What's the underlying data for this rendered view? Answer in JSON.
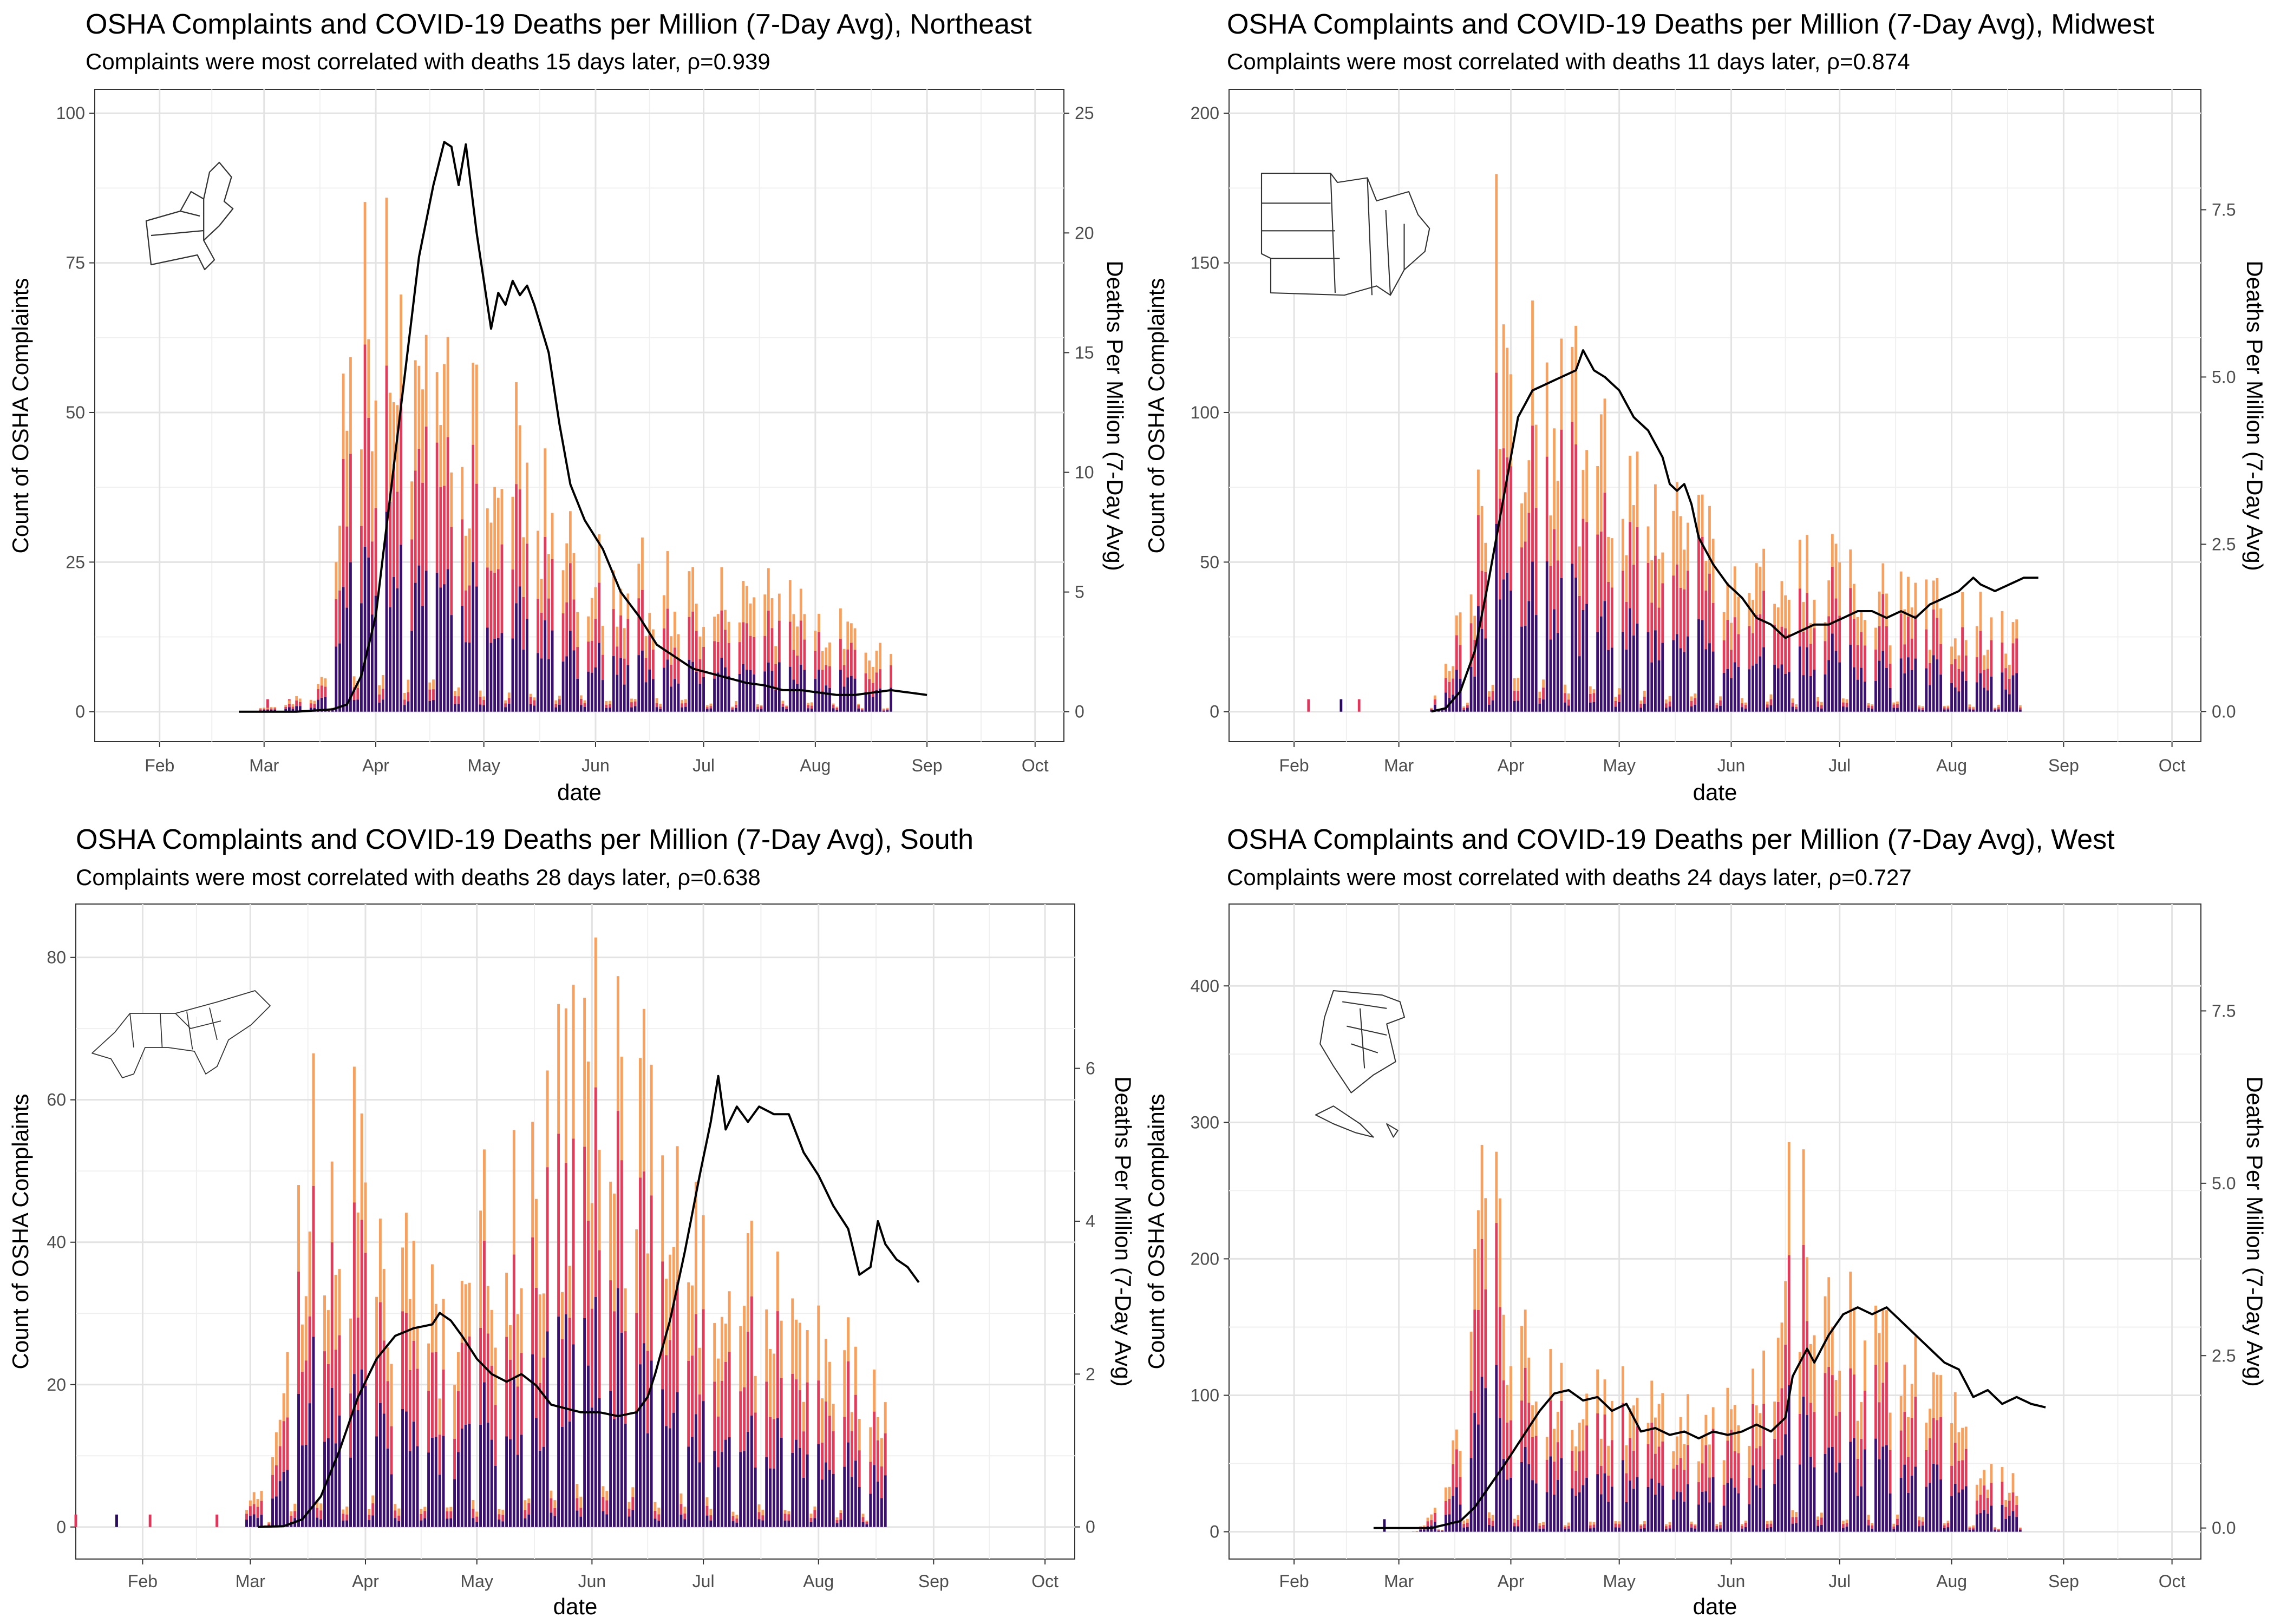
{
  "chart_data": [
    {
      "type": "bar",
      "region": "Northeast",
      "title": "OSHA Complaints and COVID-19 Deaths per Million (7-Day Avg), Northeast",
      "subtitle": "Complaints were most correlated with deaths 15 days later, ρ=0.939",
      "xlabel": "date",
      "ylabel": "Count of OSHA Complaints",
      "y2label": "Deaths Per Million (7-Day Avg)",
      "x_ticks": [
        "Feb",
        "Mar",
        "Apr",
        "May",
        "Jun",
        "Jul",
        "Aug",
        "Sep",
        "Oct"
      ],
      "y_ticks": [
        "0",
        "25",
        "50",
        "75",
        "100"
      ],
      "y2_ticks": [
        "0",
        "5",
        "10",
        "15",
        "20",
        "25"
      ],
      "ylim": [
        -5,
        104
      ],
      "y2lim": [
        -1.25,
        26
      ],
      "grid": true,
      "bars_first_day": 58,
      "bars_last_day": 235,
      "bar_complaint_anchors": [
        [
          58,
          0
        ],
        [
          62,
          1
        ],
        [
          70,
          2
        ],
        [
          75,
          3
        ],
        [
          80,
          8
        ],
        [
          83,
          45
        ],
        [
          87,
          62
        ],
        [
          92,
          72
        ],
        [
          95,
          68
        ],
        [
          100,
          55
        ],
        [
          105,
          65
        ],
        [
          110,
          52
        ],
        [
          115,
          48
        ],
        [
          120,
          45
        ],
        [
          125,
          40
        ],
        [
          130,
          44
        ],
        [
          135,
          38
        ],
        [
          140,
          35
        ],
        [
          145,
          30
        ],
        [
          150,
          28
        ],
        [
          160,
          24
        ],
        [
          170,
          22
        ],
        [
          180,
          22
        ],
        [
          190,
          18
        ],
        [
          200,
          20
        ],
        [
          210,
          16
        ],
        [
          220,
          14
        ],
        [
          230,
          12
        ],
        [
          235,
          10
        ]
      ],
      "spike_days": [
        62,
        68,
        76
      ],
      "death_line": [
        [
          54,
          0
        ],
        [
          60,
          0
        ],
        [
          70,
          0
        ],
        [
          80,
          0.1
        ],
        [
          84,
          0.3
        ],
        [
          88,
          1.5
        ],
        [
          92,
          4
        ],
        [
          96,
          9
        ],
        [
          100,
          14
        ],
        [
          104,
          19
        ],
        [
          108,
          22
        ],
        [
          111,
          23.8
        ],
        [
          113,
          23.6
        ],
        [
          115,
          22
        ],
        [
          117,
          23.7
        ],
        [
          120,
          20
        ],
        [
          124,
          16
        ],
        [
          126,
          17.5
        ],
        [
          128,
          17
        ],
        [
          130,
          18
        ],
        [
          132,
          17.4
        ],
        [
          134,
          17.8
        ],
        [
          136,
          17
        ],
        [
          140,
          15
        ],
        [
          143,
          12
        ],
        [
          146,
          9.5
        ],
        [
          150,
          8
        ],
        [
          155,
          6.8
        ],
        [
          160,
          5
        ],
        [
          165,
          4
        ],
        [
          170,
          2.8
        ],
        [
          175,
          2.3
        ],
        [
          180,
          1.8
        ],
        [
          185,
          1.6
        ],
        [
          190,
          1.4
        ],
        [
          195,
          1.2
        ],
        [
          200,
          1.1
        ],
        [
          205,
          0.9
        ],
        [
          210,
          0.9
        ],
        [
          215,
          0.8
        ],
        [
          220,
          0.7
        ],
        [
          225,
          0.7
        ],
        [
          230,
          0.8
        ],
        [
          235,
          0.9
        ],
        [
          240,
          0.8
        ],
        [
          245,
          0.7
        ]
      ],
      "map": "northeast"
    },
    {
      "type": "bar",
      "region": "Midwest",
      "title": "OSHA Complaints and COVID-19 Deaths per Million (7-Day Avg), Midwest",
      "subtitle": "Complaints were most correlated with deaths 11 days later, ρ=0.874",
      "xlabel": "date",
      "ylabel": "Count of OSHA Complaints",
      "y2label": "Deaths Per Million (7-Day Avg)",
      "x_ticks": [
        "Feb",
        "Mar",
        "Apr",
        "May",
        "Jun",
        "Jul",
        "Aug",
        "Sep",
        "Oct"
      ],
      "y_ticks": [
        "0",
        "50",
        "100",
        "150",
        "200"
      ],
      "y2_ticks": [
        "0.0",
        "2.5",
        "5.0",
        "7.5"
      ],
      "ylim": [
        -10,
        208
      ],
      "y2lim": [
        -0.45,
        9.3
      ],
      "grid": true,
      "bars_first_day": 70,
      "bars_last_day": 233,
      "bar_complaint_anchors": [
        [
          70,
          2
        ],
        [
          75,
          20
        ],
        [
          80,
          40
        ],
        [
          85,
          80
        ],
        [
          88,
          150
        ],
        [
          92,
          170
        ],
        [
          95,
          125
        ],
        [
          100,
          110
        ],
        [
          105,
          105
        ],
        [
          110,
          100
        ],
        [
          115,
          95
        ],
        [
          120,
          90
        ],
        [
          125,
          80
        ],
        [
          130,
          75
        ],
        [
          135,
          70
        ],
        [
          140,
          65
        ],
        [
          145,
          60
        ],
        [
          150,
          55
        ],
        [
          155,
          50
        ],
        [
          160,
          60
        ],
        [
          165,
          55
        ],
        [
          170,
          52
        ],
        [
          175,
          48
        ],
        [
          180,
          50
        ],
        [
          190,
          40
        ],
        [
          200,
          38
        ],
        [
          210,
          35
        ],
        [
          220,
          32
        ],
        [
          233,
          25
        ]
      ],
      "spike_days": [
        36,
        45,
        50
      ],
      "death_line": [
        [
          70,
          0
        ],
        [
          74,
          0.05
        ],
        [
          78,
          0.3
        ],
        [
          82,
          0.9
        ],
        [
          86,
          2
        ],
        [
          90,
          3.2
        ],
        [
          94,
          4.4
        ],
        [
          98,
          4.8
        ],
        [
          102,
          4.9
        ],
        [
          106,
          5
        ],
        [
          110,
          5.1
        ],
        [
          112,
          5.4
        ],
        [
          115,
          5.1
        ],
        [
          118,
          5
        ],
        [
          122,
          4.8
        ],
        [
          126,
          4.4
        ],
        [
          130,
          4.2
        ],
        [
          134,
          3.8
        ],
        [
          136,
          3.4
        ],
        [
          138,
          3.3
        ],
        [
          140,
          3.4
        ],
        [
          142,
          3.1
        ],
        [
          144,
          2.6
        ],
        [
          148,
          2.2
        ],
        [
          152,
          1.9
        ],
        [
          156,
          1.7
        ],
        [
          160,
          1.4
        ],
        [
          164,
          1.3
        ],
        [
          168,
          1.1
        ],
        [
          172,
          1.2
        ],
        [
          176,
          1.3
        ],
        [
          180,
          1.3
        ],
        [
          184,
          1.4
        ],
        [
          188,
          1.5
        ],
        [
          192,
          1.5
        ],
        [
          196,
          1.4
        ],
        [
          200,
          1.5
        ],
        [
          204,
          1.4
        ],
        [
          208,
          1.6
        ],
        [
          212,
          1.7
        ],
        [
          216,
          1.8
        ],
        [
          220,
          2
        ],
        [
          222,
          1.9
        ],
        [
          226,
          1.8
        ],
        [
          230,
          1.9
        ],
        [
          234,
          2
        ],
        [
          238,
          2
        ]
      ],
      "map": "midwest"
    },
    {
      "type": "bar",
      "region": "South",
      "title": "OSHA Complaints and COVID-19 Deaths per Million (7-Day Avg), South",
      "subtitle": "Complaints were most correlated with deaths 28 days later, ρ=0.638",
      "xlabel": "date",
      "ylabel": "Count of OSHA Complaints",
      "y2label": "Deaths Per Million (7-Day Avg)",
      "x_ticks": [
        "Feb",
        "Mar",
        "Apr",
        "May",
        "Jun",
        "Jul",
        "Aug",
        "Sep",
        "Oct"
      ],
      "y_ticks": [
        "0",
        "20",
        "40",
        "60",
        "80"
      ],
      "y2_ticks": [
        "0",
        "2",
        "4",
        "6"
      ],
      "ylim": [
        -4.5,
        87.5
      ],
      "y2lim": [
        -0.42,
        8.15
      ],
      "grid": true,
      "bars_first_day": 60,
      "bars_last_day": 232,
      "bar_complaint_anchors": [
        [
          60,
          3
        ],
        [
          65,
          5
        ],
        [
          70,
          15
        ],
        [
          73,
          40
        ],
        [
          77,
          60
        ],
        [
          80,
          48
        ],
        [
          85,
          52
        ],
        [
          90,
          50
        ],
        [
          95,
          44
        ],
        [
          100,
          38
        ],
        [
          105,
          34
        ],
        [
          110,
          32
        ],
        [
          115,
          34
        ],
        [
          120,
          38
        ],
        [
          125,
          42
        ],
        [
          130,
          44
        ],
        [
          135,
          48
        ],
        [
          140,
          52
        ],
        [
          145,
          58
        ],
        [
          150,
          62
        ],
        [
          155,
          65
        ],
        [
          160,
          62
        ],
        [
          165,
          58
        ],
        [
          170,
          55
        ],
        [
          175,
          50
        ],
        [
          180,
          45
        ],
        [
          185,
          42
        ],
        [
          190,
          38
        ],
        [
          195,
          36
        ],
        [
          200,
          34
        ],
        [
          205,
          32
        ],
        [
          210,
          30
        ],
        [
          215,
          28
        ],
        [
          220,
          25
        ],
        [
          225,
          20
        ],
        [
          232,
          15
        ]
      ],
      "spike_days": [
        14,
        25,
        34,
        52
      ],
      "death_line": [
        [
          63,
          0
        ],
        [
          70,
          0.01
        ],
        [
          75,
          0.1
        ],
        [
          80,
          0.4
        ],
        [
          85,
          1
        ],
        [
          90,
          1.7
        ],
        [
          95,
          2.2
        ],
        [
          100,
          2.5
        ],
        [
          105,
          2.6
        ],
        [
          110,
          2.65
        ],
        [
          112,
          2.8
        ],
        [
          115,
          2.7
        ],
        [
          118,
          2.5
        ],
        [
          122,
          2.2
        ],
        [
          126,
          2
        ],
        [
          130,
          1.9
        ],
        [
          134,
          2
        ],
        [
          138,
          1.85
        ],
        [
          142,
          1.6
        ],
        [
          146,
          1.55
        ],
        [
          150,
          1.5
        ],
        [
          155,
          1.5
        ],
        [
          160,
          1.45
        ],
        [
          165,
          1.5
        ],
        [
          168,
          1.7
        ],
        [
          170,
          2
        ],
        [
          174,
          2.7
        ],
        [
          178,
          3.6
        ],
        [
          182,
          4.6
        ],
        [
          185,
          5.3
        ],
        [
          187,
          5.9
        ],
        [
          189,
          5.2
        ],
        [
          192,
          5.5
        ],
        [
          195,
          5.3
        ],
        [
          198,
          5.5
        ],
        [
          202,
          5.4
        ],
        [
          206,
          5.4
        ],
        [
          210,
          4.9
        ],
        [
          214,
          4.6
        ],
        [
          218,
          4.2
        ],
        [
          222,
          3.9
        ],
        [
          225,
          3.3
        ],
        [
          228,
          3.4
        ],
        [
          230,
          4
        ],
        [
          232,
          3.7
        ],
        [
          235,
          3.5
        ],
        [
          238,
          3.4
        ],
        [
          241,
          3.2
        ]
      ],
      "map": "south"
    },
    {
      "type": "bar",
      "region": "West",
      "title": "OSHA Complaints and COVID-19 Deaths per Million (7-Day Avg), West",
      "subtitle": "Complaints were most correlated with deaths 24 days later, ρ=0.727",
      "xlabel": "date",
      "ylabel": "Count of OSHA Complaints",
      "y2label": "Deaths Per Million (7-Day Avg)",
      "x_ticks": [
        "Feb",
        "Mar",
        "Apr",
        "May",
        "Jun",
        "Jul",
        "Aug",
        "Sep",
        "Oct"
      ],
      "y_ticks": [
        "0",
        "100",
        "200",
        "300",
        "400"
      ],
      "y2_ticks": [
        "0.0",
        "2.5",
        "5.0",
        "7.5"
      ],
      "ylim": [
        -20,
        460
      ],
      "y2lim": [
        -0.45,
        9.05
      ],
      "grid": true,
      "bars_first_day": 65,
      "bars_last_day": 233,
      "bar_complaint_anchors": [
        [
          65,
          2
        ],
        [
          70,
          10
        ],
        [
          75,
          40
        ],
        [
          80,
          100
        ],
        [
          83,
          200
        ],
        [
          86,
          300
        ],
        [
          90,
          190
        ],
        [
          95,
          150
        ],
        [
          100,
          110
        ],
        [
          110,
          100
        ],
        [
          120,
          95
        ],
        [
          130,
          90
        ],
        [
          140,
          85
        ],
        [
          150,
          80
        ],
        [
          160,
          95
        ],
        [
          165,
          140
        ],
        [
          168,
          250
        ],
        [
          172,
          230
        ],
        [
          176,
          180
        ],
        [
          180,
          160
        ],
        [
          190,
          140
        ],
        [
          200,
          120
        ],
        [
          210,
          100
        ],
        [
          220,
          60
        ],
        [
          233,
          30
        ]
      ],
      "spike_days": [
        57,
        177
      ],
      "death_line": [
        [
          54,
          0
        ],
        [
          60,
          0
        ],
        [
          70,
          0
        ],
        [
          78,
          0.1
        ],
        [
          82,
          0.3
        ],
        [
          86,
          0.6
        ],
        [
          90,
          0.9
        ],
        [
          95,
          1.3
        ],
        [
          100,
          1.7
        ],
        [
          104,
          1.95
        ],
        [
          108,
          2
        ],
        [
          112,
          1.85
        ],
        [
          116,
          1.9
        ],
        [
          120,
          1.7
        ],
        [
          124,
          1.8
        ],
        [
          128,
          1.4
        ],
        [
          132,
          1.45
        ],
        [
          136,
          1.35
        ],
        [
          140,
          1.4
        ],
        [
          144,
          1.3
        ],
        [
          148,
          1.4
        ],
        [
          152,
          1.35
        ],
        [
          156,
          1.4
        ],
        [
          160,
          1.5
        ],
        [
          164,
          1.4
        ],
        [
          168,
          1.6
        ],
        [
          170,
          2.2
        ],
        [
          174,
          2.6
        ],
        [
          176,
          2.4
        ],
        [
          180,
          2.8
        ],
        [
          184,
          3.1
        ],
        [
          188,
          3.2
        ],
        [
          192,
          3.1
        ],
        [
          196,
          3.2
        ],
        [
          200,
          3
        ],
        [
          204,
          2.8
        ],
        [
          208,
          2.6
        ],
        [
          212,
          2.4
        ],
        [
          216,
          2.3
        ],
        [
          220,
          1.9
        ],
        [
          224,
          2
        ],
        [
          228,
          1.8
        ],
        [
          232,
          1.9
        ],
        [
          236,
          1.8
        ],
        [
          240,
          1.75
        ]
      ],
      "map": "west"
    }
  ]
}
